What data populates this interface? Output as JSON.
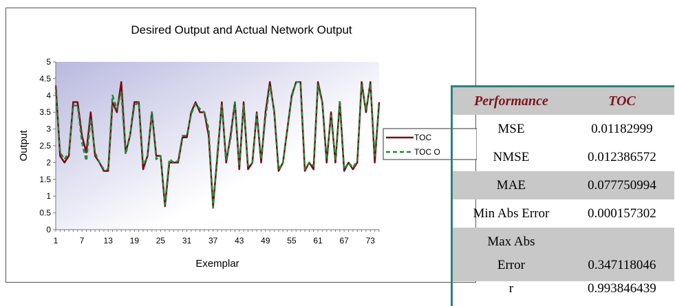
{
  "chart_data": {
    "type": "line",
    "title": "Desired Output and Actual Network Output",
    "xlabel": "Exemplar",
    "ylabel": "Output",
    "ylim": [
      0,
      5
    ],
    "yticks": [
      "0",
      "0.5",
      "1",
      "1.5",
      "2",
      "2.5",
      "3",
      "3.5",
      "4",
      "4.5",
      "5"
    ],
    "xticks": [
      1,
      7,
      13,
      19,
      25,
      31,
      37,
      43,
      49,
      55,
      61,
      67,
      73
    ],
    "x": [
      1,
      2,
      3,
      4,
      5,
      6,
      7,
      8,
      9,
      10,
      11,
      12,
      13,
      14,
      15,
      16,
      17,
      18,
      19,
      20,
      21,
      22,
      23,
      24,
      25,
      26,
      27,
      28,
      29,
      30,
      31,
      32,
      33,
      34,
      35,
      36,
      37,
      38,
      39,
      40,
      41,
      42,
      43,
      44,
      45,
      46,
      47,
      48,
      49,
      50,
      51,
      52,
      53,
      54,
      55,
      56,
      57,
      58,
      59,
      60,
      61,
      62,
      63,
      64,
      65,
      66,
      67,
      68,
      69,
      70,
      71,
      72,
      73,
      74,
      75
    ],
    "grid": false,
    "legend_position": "right",
    "series": [
      {
        "name": "TOC",
        "color": "#7a0a14",
        "style": "solid",
        "values": [
          4.3,
          2.2,
          2.0,
          2.2,
          3.8,
          3.8,
          2.8,
          2.3,
          3.5,
          2.2,
          2.0,
          1.75,
          1.75,
          3.8,
          3.5,
          4.4,
          2.3,
          2.8,
          3.8,
          3.8,
          1.8,
          2.2,
          3.5,
          2.2,
          2.2,
          0.7,
          2.0,
          2.0,
          2.0,
          2.75,
          2.75,
          3.5,
          3.8,
          3.5,
          3.5,
          2.8,
          0.7,
          2.2,
          3.8,
          2.0,
          2.8,
          3.8,
          1.8,
          3.8,
          1.8,
          2.0,
          3.5,
          2.0,
          3.5,
          4.4,
          3.5,
          1.75,
          2.0,
          3.0,
          4.0,
          4.4,
          4.4,
          1.75,
          2.0,
          1.8,
          4.4,
          3.8,
          2.0,
          3.5,
          2.0,
          3.8,
          1.75,
          2.0,
          1.8,
          2.0,
          4.4,
          3.5,
          4.4,
          2.0,
          3.8
        ]
      },
      {
        "name": "TOC O",
        "color": "#1f8a3a",
        "style": "dashed",
        "values": [
          4.1,
          2.3,
          2.1,
          2.3,
          3.7,
          3.7,
          2.6,
          2.05,
          3.3,
          2.3,
          2.0,
          1.8,
          1.8,
          4.0,
          3.6,
          4.1,
          2.25,
          2.8,
          3.7,
          3.8,
          1.95,
          2.15,
          3.5,
          2.1,
          2.2,
          0.75,
          2.1,
          2.0,
          2.05,
          2.8,
          2.8,
          3.45,
          3.75,
          3.6,
          3.5,
          3.0,
          0.65,
          2.3,
          3.7,
          2.1,
          2.7,
          3.8,
          1.9,
          3.7,
          1.9,
          2.0,
          3.45,
          2.1,
          3.35,
          4.3,
          3.55,
          1.8,
          2.0,
          3.0,
          3.95,
          4.4,
          4.4,
          1.8,
          2.0,
          1.9,
          4.3,
          3.8,
          2.1,
          3.4,
          2.05,
          3.85,
          1.8,
          2.0,
          1.85,
          2.05,
          4.3,
          3.55,
          4.35,
          2.2,
          3.7
        ]
      }
    ]
  },
  "table": {
    "headers": [
      "Performance",
      "TOC"
    ],
    "rows": [
      {
        "label": "MSE",
        "value": "0.01182999"
      },
      {
        "label": "NMSE",
        "value": "0.012386572"
      },
      {
        "label": "MAE",
        "value": "0.077750994"
      },
      {
        "label": "Min Abs Error",
        "value": "0.000157302"
      },
      {
        "label": "Max Abs",
        "value": ""
      },
      {
        "label": "Error",
        "value": "0.347118046"
      },
      {
        "label": "r",
        "value": "0.993846439"
      }
    ]
  }
}
